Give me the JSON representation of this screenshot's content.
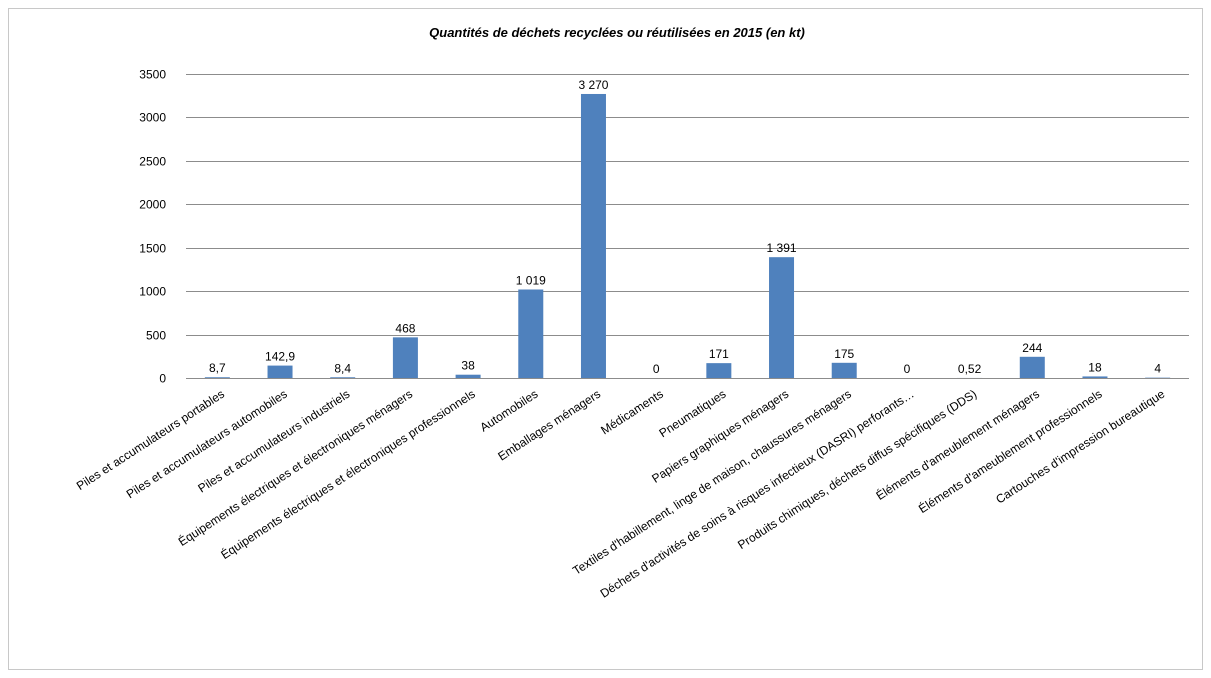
{
  "chart_data": {
    "type": "bar",
    "title": "Quantités de déchets recyclées ou réutilisées en 2015 (en kt)",
    "xlabel": "",
    "ylabel": "",
    "ylim": [
      0,
      3500
    ],
    "yticks": [
      0,
      500,
      1000,
      1500,
      2000,
      2500,
      3000,
      3500
    ],
    "grid": true,
    "legend": "none",
    "bar_color": "#4f81bd",
    "categories": [
      "Piles et accumulateurs portables",
      "Piles et accumulateurs automobiles",
      "Piles et accumulateurs industriels",
      "Équipements électriques et électroniques ménagers",
      "Équipements électriques et électroniques professionnels",
      "Automobiles",
      "Emballages ménagers",
      "Médicaments",
      "Pneumatiques",
      "Papiers graphiques ménagers",
      "Textiles d'habillement, linge de maison, chaussures ménagers",
      "Déchets d'activités de soins à risques infectieux (DASRI) perforants…",
      "Produits chimiques, déchets diffus spécifiques (DDS)",
      "Éléments d'ameublement ménagers",
      "Éléments d'ameublement professionnels",
      "Cartouches d'impression bureautique"
    ],
    "values": [
      8.7,
      142.9,
      8.4,
      468,
      38,
      1019,
      3270,
      0,
      171,
      1391,
      175,
      0,
      0.52,
      244,
      18,
      4
    ],
    "data_labels": [
      "8,7",
      "142,9",
      "8,4",
      "468",
      "38",
      "1 019",
      "3 270",
      "0",
      "171",
      "1 391",
      "175",
      "0",
      "0,52",
      "244",
      "18",
      "4"
    ]
  }
}
